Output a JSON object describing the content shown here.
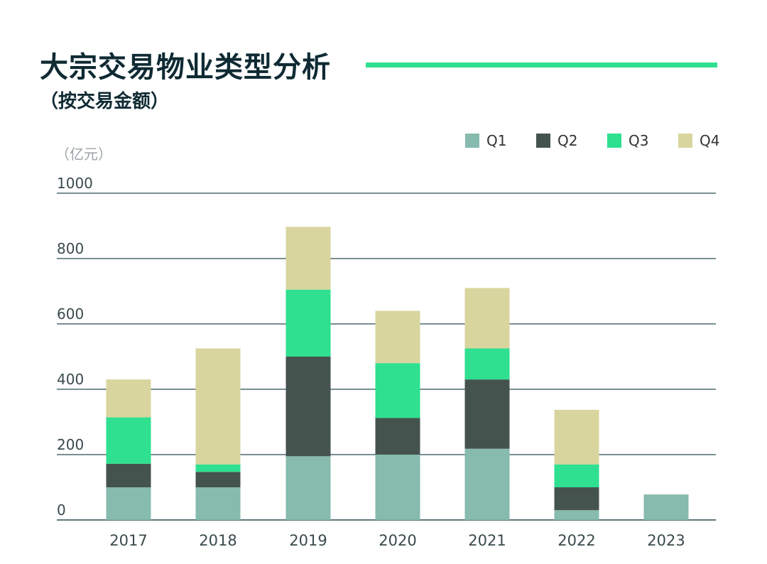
{
  "title": "大宗交易物业类型分析",
  "subtitle": "（按交易金额）",
  "colors": {
    "accent": "#2ee08f",
    "text_dark": "#0f2a33"
  },
  "chart_data": {
    "type": "bar",
    "stacked": true,
    "categories": [
      "2017",
      "2018",
      "2019",
      "2020",
      "2021",
      "2022",
      "2023"
    ],
    "series": [
      {
        "name": "Q1",
        "color": "#86bbad",
        "values": [
          100,
          100,
          195,
          200,
          218,
          30,
          78
        ]
      },
      {
        "name": "Q2",
        "color": "#45534f",
        "values": [
          72,
          47,
          305,
          112,
          212,
          70,
          0
        ]
      },
      {
        "name": "Q3",
        "color": "#2ee08f",
        "values": [
          142,
          23,
          205,
          168,
          95,
          70,
          0
        ]
      },
      {
        "name": "Q4",
        "color": "#d9d59e",
        "values": [
          116,
          355,
          192,
          160,
          185,
          167,
          0
        ]
      }
    ],
    "ylabel": "（亿元）",
    "yticks": [
      0,
      200,
      400,
      600,
      800,
      1000
    ],
    "ylim": [
      0,
      1000
    ],
    "grid": true,
    "legend": "top-right"
  }
}
